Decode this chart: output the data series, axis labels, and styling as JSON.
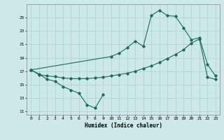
{
  "xlabel": "Humidex (Indice chaleur)",
  "bg_color": "#cce8e8",
  "grid_color": "#aacfcf",
  "line_color": "#1a6b5a",
  "s1_x": [
    0,
    1,
    2,
    3,
    4,
    5,
    6,
    7,
    8,
    9
  ],
  "s1_y": [
    17.2,
    16.6,
    15.8,
    15.5,
    14.7,
    14.2,
    13.7,
    12.0,
    11.5,
    13.5
  ],
  "s2_x": [
    0,
    10,
    11,
    12,
    13,
    14,
    15,
    16,
    17,
    18,
    19,
    20,
    21,
    22,
    23
  ],
  "s2_y": [
    17.2,
    19.2,
    19.7,
    20.5,
    21.5,
    20.7,
    25.3,
    26.1,
    25.3,
    25.2,
    23.5,
    21.7,
    22.0,
    18.0,
    16.3
  ],
  "s3_x": [
    0,
    1,
    2,
    3,
    4,
    5,
    6,
    7,
    8,
    9,
    10,
    11,
    12,
    13,
    14,
    15,
    16,
    17,
    18,
    19,
    20,
    21,
    22,
    23
  ],
  "s3_y": [
    17.2,
    16.5,
    16.3,
    16.2,
    16.0,
    15.9,
    15.9,
    15.9,
    16.0,
    16.1,
    16.3,
    16.5,
    16.7,
    17.0,
    17.4,
    17.8,
    18.3,
    18.9,
    19.5,
    20.2,
    21.2,
    21.8,
    16.1,
    15.8
  ],
  "ylim": [
    10.5,
    27.0
  ],
  "xlim": [
    -0.5,
    23.5
  ],
  "yticks": [
    11,
    13,
    15,
    17,
    19,
    21,
    23,
    25
  ],
  "xticks": [
    0,
    1,
    2,
    3,
    4,
    5,
    6,
    7,
    8,
    9,
    10,
    11,
    12,
    13,
    14,
    15,
    16,
    17,
    18,
    19,
    20,
    21,
    22,
    23
  ],
  "xlabel_fontsize": 5.5,
  "tick_fontsize": 4.5
}
